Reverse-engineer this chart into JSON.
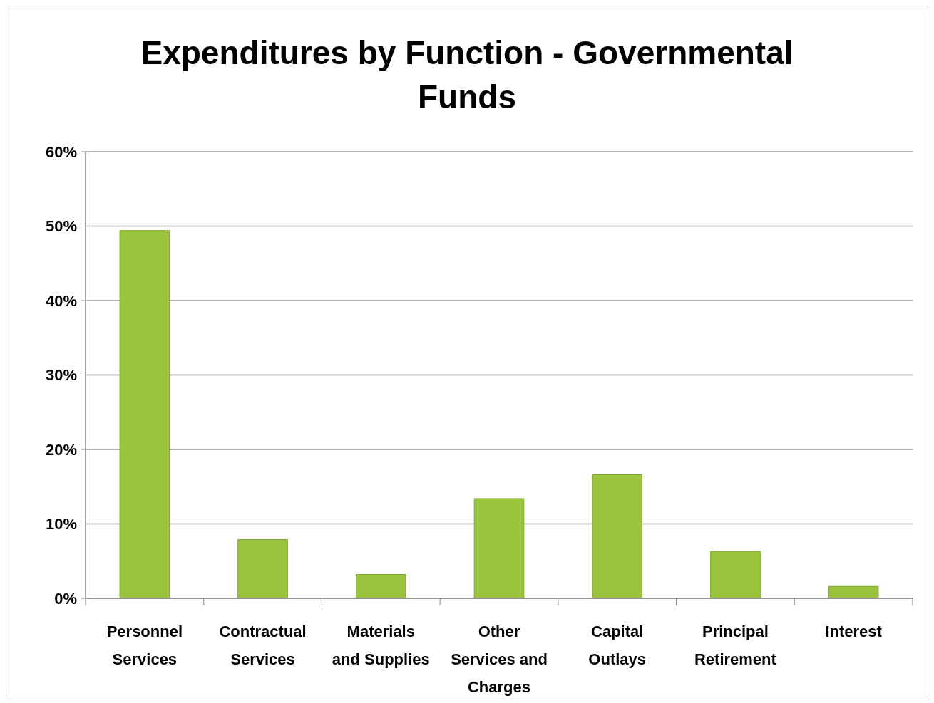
{
  "chart_data": {
    "type": "bar",
    "title": "Expenditures by Function - Governmental Funds",
    "categories": [
      "Personnel Services",
      "Contractual Services",
      "Materials and Supplies",
      "Other Services and Charges",
      "Capital Outlays",
      "Principal Retirement",
      "Interest"
    ],
    "values": [
      49.4,
      7.9,
      3.2,
      13.4,
      16.6,
      6.3,
      1.6
    ],
    "color": "#9ac43c",
    "ylim": [
      0,
      60
    ],
    "yticks": [
      {
        "value": 0,
        "label": "0%"
      },
      {
        "value": 10,
        "label": "10%"
      },
      {
        "value": 20,
        "label": "20%"
      },
      {
        "value": 30,
        "label": "30%"
      },
      {
        "value": 40,
        "label": "40%"
      },
      {
        "value": 50,
        "label": "50%"
      },
      {
        "value": 60,
        "label": "60%"
      }
    ],
    "grid": "y"
  }
}
